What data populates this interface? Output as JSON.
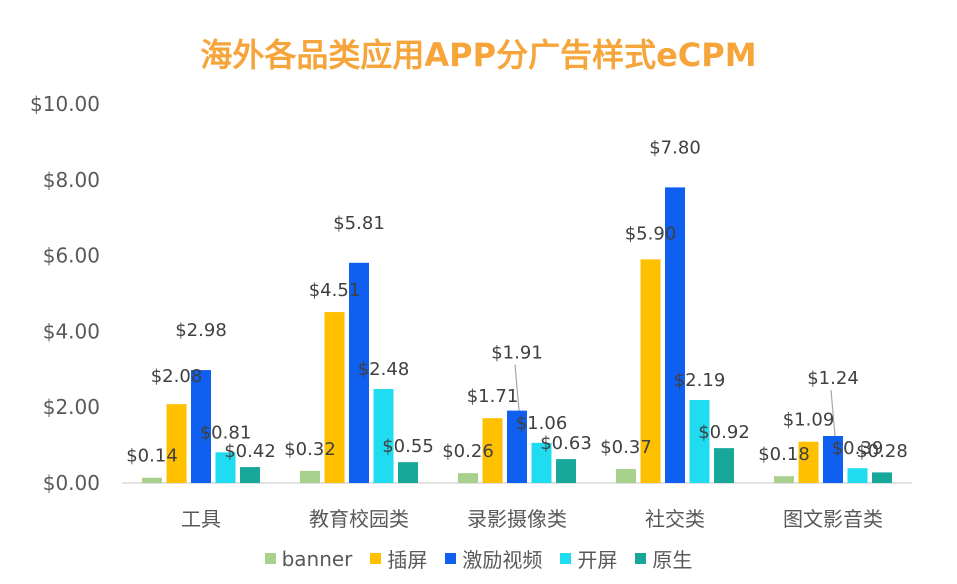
{
  "chart_data": {
    "type": "bar",
    "title": "海外各品类应用APP分广告样式eCPM",
    "categories": [
      "工具",
      "教育校园类",
      "录影摄像类",
      "社交类",
      "图文影音类"
    ],
    "y_ticks": [
      "$0.00",
      "$2.00",
      "$4.00",
      "$6.00",
      "$8.00",
      "$10.00"
    ],
    "ylim": [
      0,
      10
    ],
    "grid": false,
    "legend_position": "bottom",
    "series": [
      {
        "name": "banner",
        "color": "#A9D18E",
        "values": [
          0.14,
          0.32,
          0.26,
          0.37,
          0.18
        ],
        "labels": [
          "$0.14",
          "$0.32",
          "$0.26",
          "$0.37",
          "$0.18"
        ]
      },
      {
        "name": "插屏",
        "color": "#FFC000",
        "values": [
          2.08,
          4.51,
          1.71,
          5.9,
          1.09
        ],
        "labels": [
          "$2.08",
          "$4.51",
          "$1.71",
          "$5.90",
          "$1.09"
        ]
      },
      {
        "name": "激励视频",
        "color": "#0F5FF0",
        "values": [
          2.98,
          5.81,
          1.91,
          7.8,
          1.24
        ],
        "labels": [
          "$2.98",
          "$5.81",
          "$1.91",
          "$7.80",
          "$1.24"
        ]
      },
      {
        "name": "开屏",
        "color": "#1FDCF0",
        "values": [
          0.81,
          2.48,
          1.06,
          2.19,
          0.39
        ],
        "labels": [
          "$0.81",
          "$2.48",
          "$1.06",
          "$2.19",
          "$0.39"
        ]
      },
      {
        "name": "原生",
        "color": "#17A89A",
        "values": [
          0.42,
          0.55,
          0.63,
          0.92,
          0.28
        ],
        "labels": [
          "$0.42",
          "$0.55",
          "$0.63",
          "$0.92",
          "$0.28"
        ]
      }
    ]
  }
}
